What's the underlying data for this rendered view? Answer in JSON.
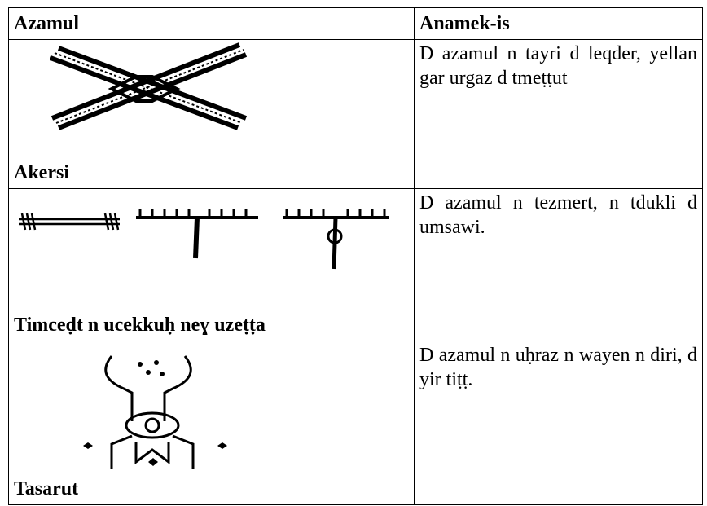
{
  "table": {
    "header": [
      "Azamul",
      "Anamek-is"
    ],
    "rows": [
      {
        "label": "Akersi",
        "description": "D azamul n tayri d leqder, yellan gar urgaz d tmeṭṭut"
      },
      {
        "label": "Timceḍt n ucekkuḥ neɣ uzeṭṭa",
        "description": "D azamul n tezmert, n tdukli d umsawi."
      },
      {
        "label": "Tasarut",
        "description": "D azamul n uḥraz n wayen n diri, d yir tiṭṭ."
      }
    ]
  }
}
